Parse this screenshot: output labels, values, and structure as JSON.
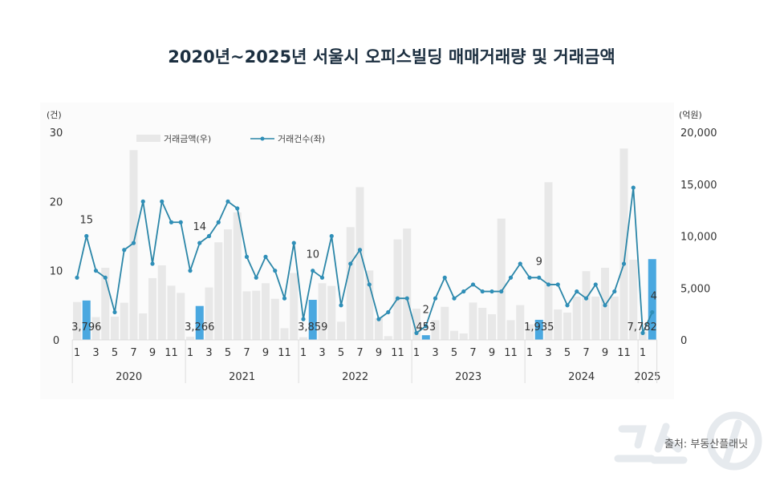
{
  "chart_data": {
    "type": "bar+line",
    "title": "2020년~2025년 서울시 오피스빌딩 매매거래량 및 거래금액",
    "left_axis": {
      "unit": "(건)",
      "range": [
        0,
        30
      ],
      "ticks": [
        "0",
        "10",
        "20",
        "30"
      ]
    },
    "right_axis": {
      "unit": "(억원)",
      "range": [
        0,
        20000
      ],
      "ticks": [
        "0",
        "5,000",
        "10,000",
        "15,000",
        "20,000"
      ]
    },
    "legend": [
      {
        "name": "거래금액(우)",
        "type": "bar"
      },
      {
        "name": "거래건수(좌)",
        "type": "line"
      }
    ],
    "legend_position": "top-center",
    "years": [
      {
        "label": "2020",
        "months": 12
      },
      {
        "label": "2021",
        "months": 12
      },
      {
        "label": "2022",
        "months": 12
      },
      {
        "label": "2023",
        "months": 12
      },
      {
        "label": "2024",
        "months": 12
      },
      {
        "label": "2025",
        "months": 2
      }
    ],
    "month_tick_labels": [
      "1",
      "3",
      "5",
      "7",
      "9",
      "11"
    ],
    "series": [
      {
        "name": "거래금액(우)",
        "axis": "right",
        "values": [
          3650,
          3796,
          2200,
          6950,
          2240,
          3580,
          18280,
          2550,
          5950,
          7180,
          5220,
          4530,
          300,
          3266,
          5050,
          9400,
          10650,
          12280,
          4680,
          4740,
          5460,
          3960,
          1130,
          6440,
          260,
          3859,
          5460,
          5200,
          1750,
          10860,
          14720,
          6690,
          2100,
          360,
          9680,
          10730,
          3010,
          453,
          1900,
          3190,
          875,
          620,
          3600,
          3090,
          2470,
          11690,
          1900,
          3350,
          1500,
          1935,
          15190,
          2930,
          2630,
          4170,
          6620,
          4170,
          6950,
          4170,
          18430,
          7720,
          820,
          7782
        ]
      },
      {
        "name": "거래건수(좌)",
        "axis": "left",
        "values": [
          9,
          15,
          10,
          9,
          4,
          13,
          14,
          20,
          11,
          20,
          17,
          17,
          10,
          14,
          15,
          17,
          20,
          19,
          12,
          9,
          12,
          10,
          6,
          14,
          3,
          10,
          9,
          15,
          5,
          11,
          13,
          8,
          3,
          4,
          6,
          6,
          1,
          2,
          6,
          9,
          6,
          7,
          8,
          7,
          7,
          7,
          9,
          11,
          9,
          9,
          8,
          8,
          5,
          7,
          6,
          8,
          5,
          7,
          11,
          22,
          1,
          4
        ]
      }
    ],
    "highlighted_months": [
      1,
      13,
      25,
      37,
      49,
      61
    ],
    "bar_labels": [
      "3,796",
      "3,266",
      "3,859",
      "453",
      "1,935",
      "7,782"
    ],
    "line_labels": [
      "15",
      "14",
      "10",
      "2",
      "9",
      "4"
    ],
    "colors": {
      "bar": "#e8e8e8",
      "bar_highlight": "#4aa8e0",
      "line": "#2b86a8",
      "marker": "#2f8fb8",
      "title": "#1c2f40"
    }
  },
  "source": "출처: 부동산플래닛",
  "watermark": "뉴스1"
}
